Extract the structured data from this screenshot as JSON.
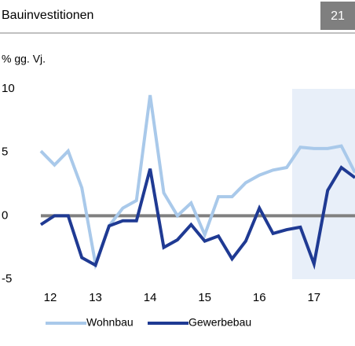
{
  "chart_data": {
    "type": "line",
    "title": "Bauinvestitionen",
    "page_number": "21",
    "ylabel": "% gg. Vj.",
    "x": [
      12,
      12.25,
      12.5,
      12.75,
      13,
      13.25,
      13.5,
      13.75,
      14,
      14.25,
      14.5,
      14.75,
      15,
      15.25,
      15.5,
      15.75,
      16,
      16.25,
      16.5,
      16.75,
      17,
      17.25,
      17.5,
      17.75
    ],
    "xlim": [
      12,
      17.75
    ],
    "xticks": [
      12,
      13,
      14,
      15,
      16,
      17
    ],
    "ylim": [
      -5,
      10
    ],
    "yticks": [
      -5,
      0,
      5,
      10
    ],
    "shaded_range": [
      16.6,
      17.75
    ],
    "series": [
      {
        "name": "Wohnbau",
        "color": "#a9c9ea",
        "values": [
          5.1,
          4,
          5.1,
          2.2,
          -3.8,
          -0.8,
          0.6,
          1.2,
          9.5,
          1.8,
          0,
          1,
          -1.5,
          1.5,
          1.5,
          2.6,
          3.2,
          3.6,
          3.8,
          5.4,
          5.3,
          5.3,
          5.5,
          3.4
        ]
      },
      {
        "name": "Gewerbebau",
        "color": "#1f3a93",
        "values": [
          -0.7,
          0,
          0,
          -3.3,
          -3.9,
          -0.8,
          -0.4,
          -0.4,
          3.7,
          -2.5,
          -1.9,
          -0.7,
          -2,
          -1.6,
          -3.4,
          -2,
          0.6,
          -1.4,
          -1.1,
          -0.9,
          -3.8,
          2,
          3.8,
          3.0
        ]
      }
    ]
  }
}
